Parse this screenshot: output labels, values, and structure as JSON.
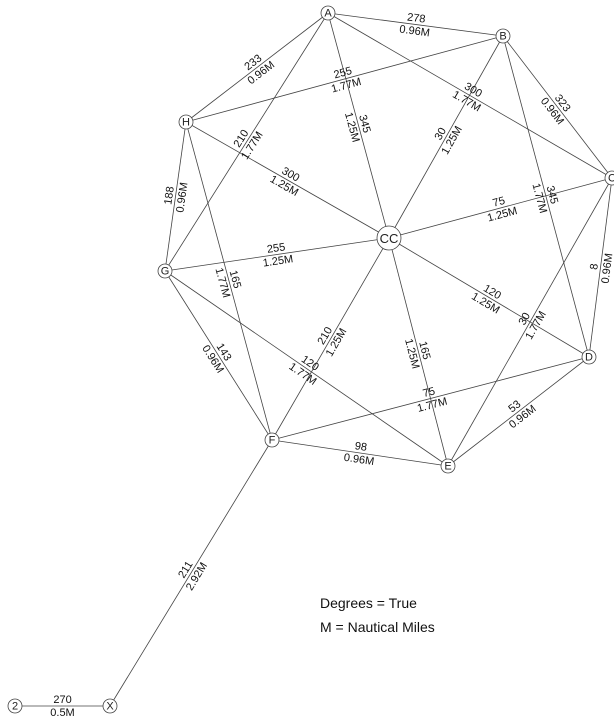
{
  "nodes": {
    "A": "A",
    "B": "B",
    "C": "C",
    "D": "D",
    "E": "E",
    "F": "F",
    "G": "G",
    "H": "H",
    "CC": "CC",
    "two": "2",
    "X": "X"
  },
  "edges": {
    "A_B": {
      "l1": "278",
      "l2": "0.96M"
    },
    "H_A": {
      "l1": "233",
      "l2": "0.96M"
    },
    "H_B": {
      "l1": "255",
      "l2": "1.77M"
    },
    "A_C": {
      "l1": "300",
      "l2": "1.77M"
    },
    "B_C": {
      "l1": "323",
      "l2": "0.96M"
    },
    "A_CC": {
      "l1": "345",
      "l2": "1.25M"
    },
    "H_CC": {
      "l1": "300",
      "l2": "1.25M"
    },
    "B_CC": {
      "l1": "30",
      "l2": "1.25M"
    },
    "H_G": {
      "l1": "188",
      "l2": "0.96M"
    },
    "A_G": {
      "l1": "210",
      "l2": "1.77M"
    },
    "CC_C": {
      "l1": "75",
      "l2": "1.25M"
    },
    "B_D": {
      "l1": "345",
      "l2": "1.77M"
    },
    "C_D": {
      "l1": "8",
      "l2": "0.96M"
    },
    "G_CC": {
      "l1": "255",
      "l2": "1.25M"
    },
    "CC_D": {
      "l1": "120",
      "l2": "1.25M"
    },
    "H_F": {
      "l1": "165",
      "l2": "1.77M"
    },
    "CC_F": {
      "l1": "210",
      "l2": "1.25M"
    },
    "CC_E": {
      "l1": "165",
      "l2": "1.25M"
    },
    "C_E": {
      "l1": "30",
      "l2": "1.77M"
    },
    "G_F": {
      "l1": "143",
      "l2": "0.96M"
    },
    "G_E": {
      "l1": "120",
      "l2": "1.77M"
    },
    "F_D": {
      "l1": "75",
      "l2": "1.77M"
    },
    "E_D": {
      "l1": "53",
      "l2": "0.96M"
    },
    "F_E": {
      "l1": "98",
      "l2": "0.96M"
    },
    "X_F": {
      "l1": "211",
      "l2": "2.92M"
    },
    "two_X": {
      "l1": "270",
      "l2": "0.5M"
    }
  },
  "legend": {
    "degrees": "Degrees = True",
    "miles": "M = Nautical Miles"
  }
}
